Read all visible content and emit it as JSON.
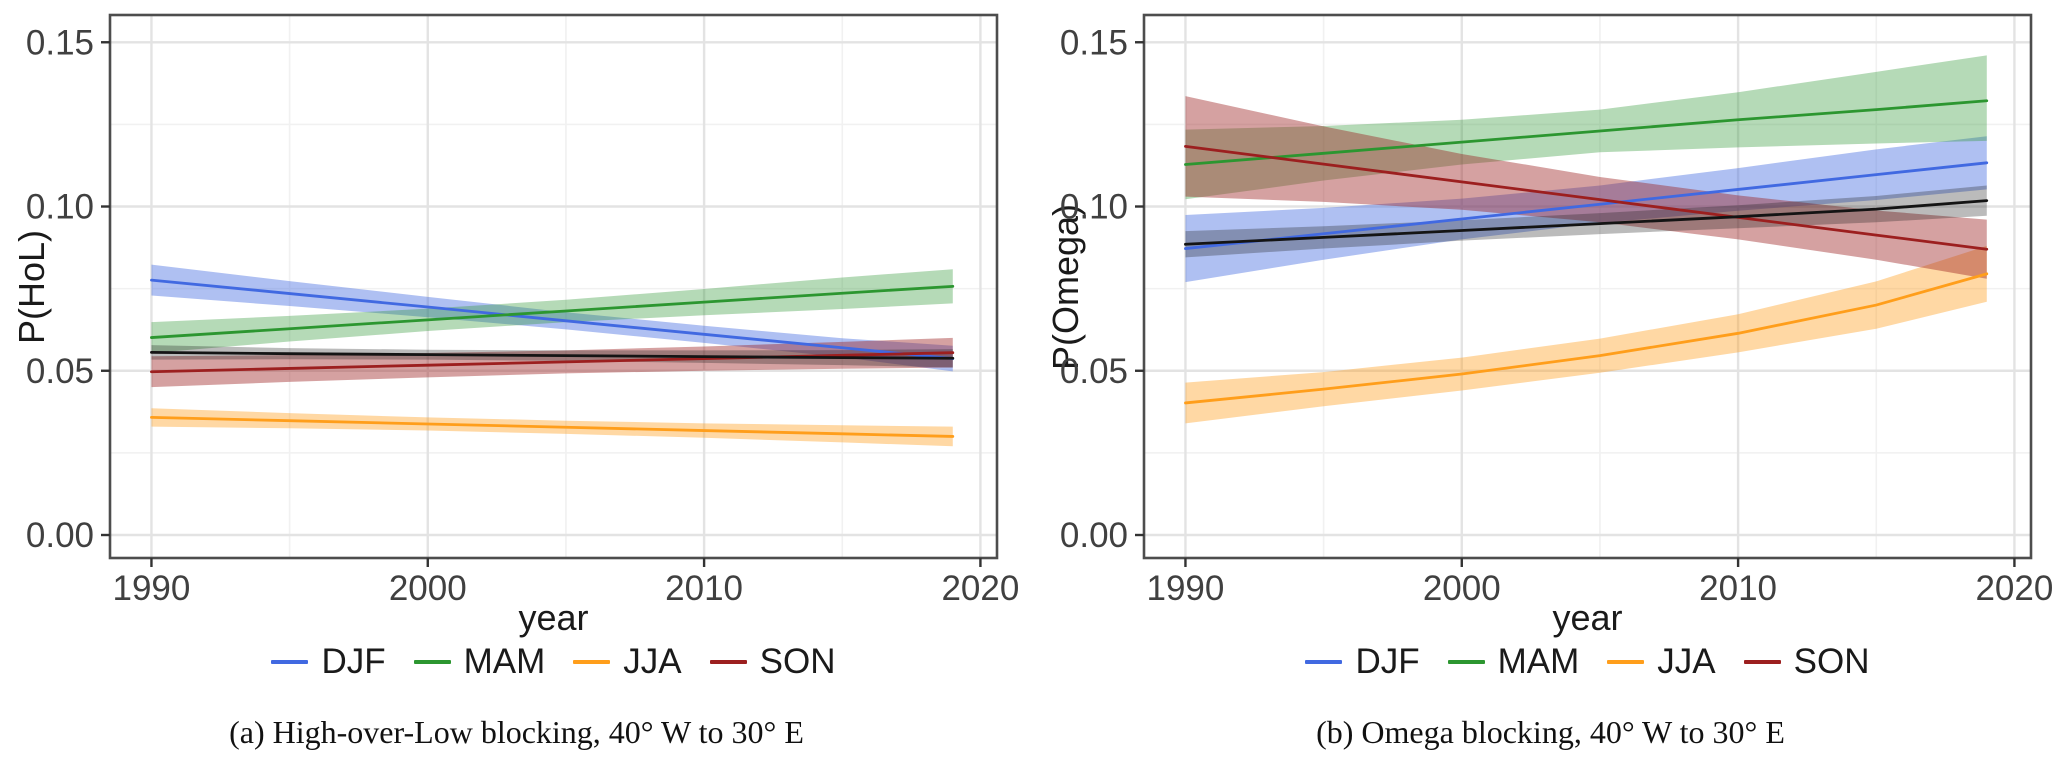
{
  "chart_data": [
    {
      "type": "line",
      "panel_id": "a",
      "caption": "(a) High-over-Low blocking, 40° W to 30° E",
      "xlabel": "year",
      "ylabel": "P(HoL)",
      "xlim": [
        1988.5,
        2020.6
      ],
      "ylim": [
        -0.007,
        0.1583
      ],
      "grid": true,
      "legend_position": "bottom",
      "xticks": [
        {
          "value": 1990,
          "label": "1990"
        },
        {
          "value": 2000,
          "label": "2000"
        },
        {
          "value": 2010,
          "label": "2010"
        },
        {
          "value": 2020,
          "label": "2020"
        }
      ],
      "yticks": [
        {
          "value": 0.0,
          "label": "0.00"
        },
        {
          "value": 0.05,
          "label": "0.05"
        },
        {
          "value": 0.1,
          "label": "0.10"
        },
        {
          "value": 0.15,
          "label": "0.15"
        }
      ],
      "xticks_minor": [
        1995,
        2005,
        2015
      ],
      "yticks_minor": [
        0.025,
        0.075,
        0.125
      ],
      "x": [
        1990,
        1995,
        2000,
        2005,
        2010,
        2015,
        2019
      ],
      "series": [
        {
          "name": "DJF",
          "in_legend": true,
          "color": "#4169E1",
          "band": "rgba(65,105,225,0.42)",
          "values": [
            0.0776,
            0.0735,
            0.0694,
            0.0652,
            0.0611,
            0.057,
            0.0537
          ],
          "lower": [
            0.0729,
            0.0697,
            0.0663,
            0.0626,
            0.0585,
            0.0541,
            0.0498
          ],
          "upper": [
            0.0823,
            0.0773,
            0.0725,
            0.0678,
            0.0637,
            0.0599,
            0.0576
          ]
        },
        {
          "name": "MAM",
          "in_legend": true,
          "color": "#2C9630",
          "band": "rgba(44,150,48,0.35)",
          "values": [
            0.0601,
            0.0628,
            0.0655,
            0.0682,
            0.0709,
            0.0736,
            0.0757
          ],
          "lower": [
            0.0554,
            0.0589,
            0.0621,
            0.0648,
            0.0669,
            0.0688,
            0.0705
          ],
          "upper": [
            0.0648,
            0.0667,
            0.0689,
            0.0716,
            0.0749,
            0.0784,
            0.0809
          ]
        },
        {
          "name": "JJA",
          "in_legend": true,
          "color": "#FF9E1B",
          "band": "rgba(255,158,27,0.40)",
          "values": [
            0.0358,
            0.0348,
            0.0338,
            0.0328,
            0.0318,
            0.0308,
            0.03
          ],
          "lower": [
            0.033,
            0.0325,
            0.0318,
            0.0308,
            0.0296,
            0.0282,
            0.027
          ],
          "upper": [
            0.0386,
            0.0371,
            0.0358,
            0.0348,
            0.034,
            0.0334,
            0.033
          ]
        },
        {
          "name": "SON",
          "in_legend": true,
          "color": "#9C1F1F",
          "band": "rgba(156,31,31,0.42)",
          "values": [
            0.0497,
            0.0507,
            0.0517,
            0.0527,
            0.0537,
            0.0547,
            0.0555
          ],
          "lower": [
            0.045,
            0.0466,
            0.048,
            0.0492,
            0.05,
            0.0506,
            0.051
          ],
          "upper": [
            0.0544,
            0.0548,
            0.0554,
            0.0562,
            0.0574,
            0.0588,
            0.06
          ]
        },
        {
          "name": "overall",
          "in_legend": false,
          "color": "#141414",
          "band": "rgba(30,30,30,0.30)",
          "values": [
            0.0556,
            0.0552,
            0.0549,
            0.0546,
            0.0543,
            0.054,
            0.0538
          ],
          "lower": [
            0.0534,
            0.0535,
            0.0534,
            0.053,
            0.0524,
            0.0517,
            0.051
          ],
          "upper": [
            0.0578,
            0.0569,
            0.0564,
            0.0562,
            0.0562,
            0.0563,
            0.0566
          ]
        }
      ]
    },
    {
      "type": "line",
      "panel_id": "b",
      "caption": "(b) Omega blocking, 40° W to 30° E",
      "xlabel": "year",
      "ylabel": "P(Omega)",
      "xlim": [
        1988.5,
        2020.6
      ],
      "ylim": [
        -0.007,
        0.1583
      ],
      "grid": true,
      "legend_position": "bottom",
      "xticks": [
        {
          "value": 1990,
          "label": "1990"
        },
        {
          "value": 2000,
          "label": "2000"
        },
        {
          "value": 2010,
          "label": "2010"
        },
        {
          "value": 2020,
          "label": "2020"
        }
      ],
      "yticks": [
        {
          "value": 0.0,
          "label": "0.00"
        },
        {
          "value": 0.05,
          "label": "0.05"
        },
        {
          "value": 0.1,
          "label": "0.10"
        },
        {
          "value": 0.15,
          "label": "0.15"
        }
      ],
      "xticks_minor": [
        1995,
        2005,
        2015
      ],
      "yticks_minor": [
        0.025,
        0.075,
        0.125
      ],
      "x": [
        1990,
        1995,
        2000,
        2005,
        2010,
        2015,
        2019
      ],
      "series": [
        {
          "name": "DJF",
          "in_legend": true,
          "color": "#4169E1",
          "band": "rgba(65,105,225,0.42)",
          "values": [
            0.0872,
            0.0917,
            0.0962,
            0.1007,
            0.1052,
            0.1097,
            0.1133
          ],
          "lower": [
            0.077,
            0.0838,
            0.09,
            0.095,
            0.0987,
            0.102,
            0.1052
          ],
          "upper": [
            0.0974,
            0.0996,
            0.1024,
            0.1064,
            0.1117,
            0.1174,
            0.1214
          ]
        },
        {
          "name": "MAM",
          "in_legend": true,
          "color": "#2C9630",
          "band": "rgba(44,150,48,0.35)",
          "values": [
            0.1128,
            0.1162,
            0.1196,
            0.123,
            0.1264,
            0.1295,
            0.1322
          ],
          "lower": [
            0.1022,
            0.1079,
            0.1128,
            0.1165,
            0.118,
            0.1192,
            0.12
          ],
          "upper": [
            0.1234,
            0.1245,
            0.1264,
            0.1295,
            0.1348,
            0.141,
            0.146
          ]
        },
        {
          "name": "JJA",
          "in_legend": true,
          "color": "#FF9E1B",
          "band": "rgba(255,158,27,0.40)",
          "values": [
            0.0402,
            0.0444,
            0.049,
            0.0546,
            0.0614,
            0.07,
            0.0795
          ],
          "lower": [
            0.034,
            0.0392,
            0.044,
            0.0494,
            0.0556,
            0.0628,
            0.071
          ],
          "upper": [
            0.0464,
            0.0496,
            0.054,
            0.0598,
            0.0672,
            0.0772,
            0.088
          ]
        },
        {
          "name": "SON",
          "in_legend": true,
          "color": "#9C1F1F",
          "band": "rgba(156,31,31,0.42)",
          "values": [
            0.1183,
            0.1129,
            0.1075,
            0.1021,
            0.0967,
            0.0913,
            0.087
          ],
          "lower": [
            0.103,
            0.1014,
            0.099,
            0.0952,
            0.09,
            0.0838,
            0.078
          ],
          "upper": [
            0.1336,
            0.1244,
            0.116,
            0.109,
            0.1034,
            0.0988,
            0.096
          ]
        },
        {
          "name": "overall",
          "in_legend": false,
          "color": "#141414",
          "band": "rgba(30,30,30,0.30)",
          "values": [
            0.0885,
            0.0906,
            0.0927,
            0.0948,
            0.0969,
            0.0992,
            0.1018
          ],
          "lower": [
            0.0845,
            0.0872,
            0.0896,
            0.0916,
            0.0934,
            0.0952,
            0.0972
          ],
          "upper": [
            0.0925,
            0.094,
            0.0958,
            0.098,
            0.1004,
            0.1032,
            0.1064
          ]
        }
      ]
    }
  ],
  "style": {
    "grid_major_color": "#e3e3e3",
    "grid_minor_color": "#f1f1f1",
    "panel_border_color": "#4d4d4d",
    "tick_color": "#333333",
    "tick_label_color": "#404040"
  }
}
